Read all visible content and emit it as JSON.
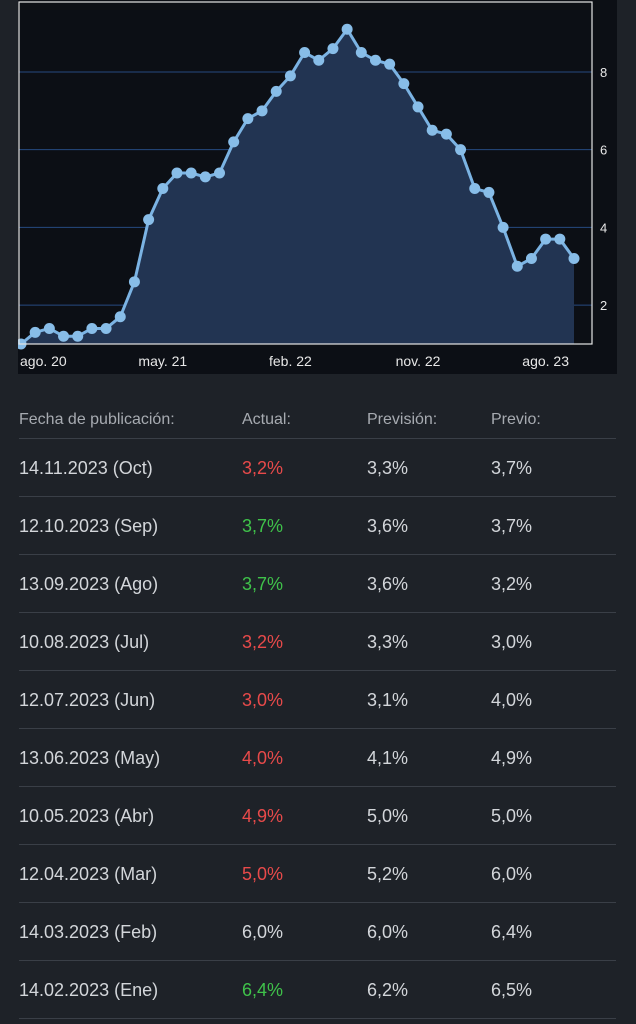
{
  "chart_data": {
    "type": "area",
    "x_tick_labels": [
      "ago. 20",
      "may. 21",
      "feb. 22",
      "nov. 22",
      "ago. 23"
    ],
    "y_tick_labels": [
      "2",
      "4",
      "6",
      "8"
    ],
    "ylim": [
      1,
      9.8
    ],
    "y_axis_position": "right",
    "grid": "horizontal",
    "x": [
      "2020-07",
      "2020-08",
      "2020-09",
      "2020-10",
      "2020-11",
      "2020-12",
      "2021-01",
      "2021-02",
      "2021-03",
      "2021-04",
      "2021-05",
      "2021-06",
      "2021-07",
      "2021-08",
      "2021-09",
      "2021-10",
      "2021-11",
      "2021-12",
      "2022-01",
      "2022-02",
      "2022-03",
      "2022-04",
      "2022-05",
      "2022-06",
      "2022-07",
      "2022-08",
      "2022-09",
      "2022-10",
      "2022-11",
      "2022-12",
      "2023-01",
      "2023-02",
      "2023-03",
      "2023-04",
      "2023-05",
      "2023-06",
      "2023-07",
      "2023-08",
      "2023-09",
      "2023-10"
    ],
    "values": [
      1.0,
      1.3,
      1.4,
      1.2,
      1.2,
      1.4,
      1.4,
      1.7,
      2.6,
      4.2,
      5.0,
      5.4,
      5.4,
      5.3,
      5.4,
      6.2,
      6.8,
      7.0,
      7.5,
      7.9,
      8.5,
      8.3,
      8.6,
      9.1,
      8.5,
      8.3,
      8.2,
      7.7,
      7.1,
      6.5,
      6.4,
      6.0,
      5.0,
      4.9,
      4.0,
      3.0,
      3.2,
      3.7,
      3.7,
      3.2
    ],
    "colors": {
      "line": "#7bb3e3",
      "area": "#223452",
      "grid": "#264a80",
      "background": "#0c0f15"
    }
  },
  "table": {
    "headers": [
      "Fecha de publicación:",
      "Actual:",
      "Previsión:",
      "Previo:"
    ],
    "rows": [
      {
        "date": "14.11.2023 (Oct)",
        "actual": "3,2%",
        "actual_trend": "red",
        "forecast": "3,3%",
        "previous": "3,7%"
      },
      {
        "date": "12.10.2023 (Sep)",
        "actual": "3,7%",
        "actual_trend": "green",
        "forecast": "3,6%",
        "previous": "3,7%"
      },
      {
        "date": "13.09.2023 (Ago)",
        "actual": "3,7%",
        "actual_trend": "green",
        "forecast": "3,6%",
        "previous": "3,2%"
      },
      {
        "date": "10.08.2023 (Jul)",
        "actual": "3,2%",
        "actual_trend": "red",
        "forecast": "3,3%",
        "previous": "3,0%"
      },
      {
        "date": "12.07.2023 (Jun)",
        "actual": "3,0%",
        "actual_trend": "red",
        "forecast": "3,1%",
        "previous": "4,0%"
      },
      {
        "date": "13.06.2023 (May)",
        "actual": "4,0%",
        "actual_trend": "red",
        "forecast": "4,1%",
        "previous": "4,9%"
      },
      {
        "date": "10.05.2023 (Abr)",
        "actual": "4,9%",
        "actual_trend": "red",
        "forecast": "5,0%",
        "previous": "5,0%"
      },
      {
        "date": "12.04.2023 (Mar)",
        "actual": "5,0%",
        "actual_trend": "red",
        "forecast": "5,2%",
        "previous": "6,0%"
      },
      {
        "date": "14.03.2023 (Feb)",
        "actual": "6,0%",
        "actual_trend": "neutral",
        "forecast": "6,0%",
        "previous": "6,4%"
      },
      {
        "date": "14.02.2023 (Ene)",
        "actual": "6,4%",
        "actual_trend": "green",
        "forecast": "6,2%",
        "previous": "6,5%"
      }
    ]
  }
}
